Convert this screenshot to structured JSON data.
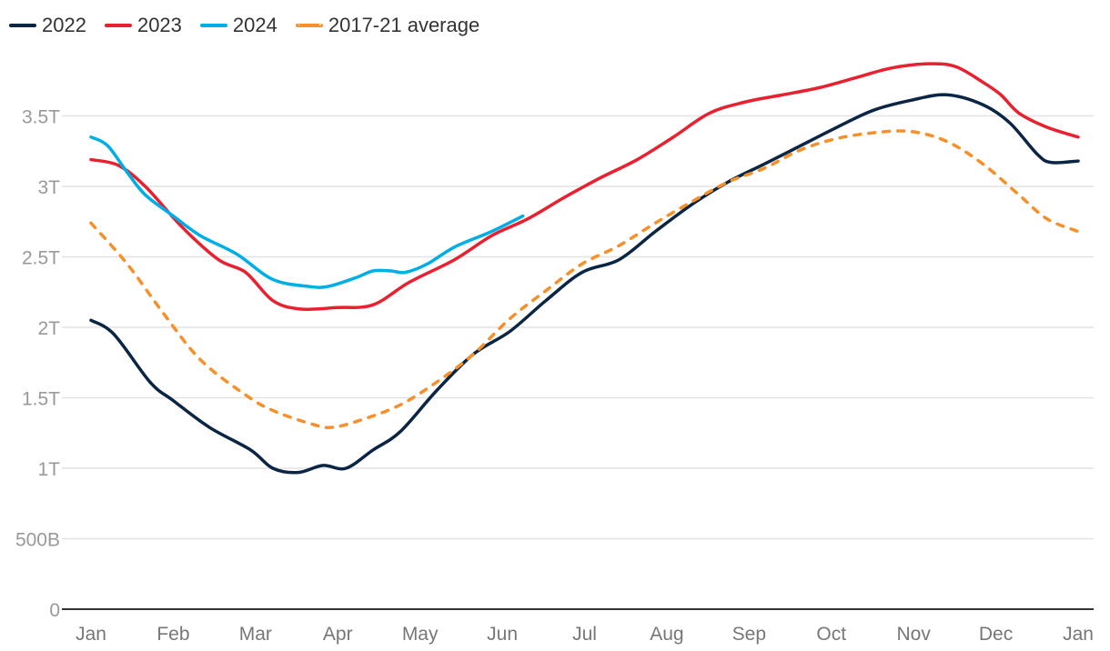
{
  "chart_data": {
    "type": "line",
    "title": "",
    "xlabel": "",
    "ylabel": "",
    "x_unit": "months since Jan 1",
    "y_unit": "trillions",
    "xlim": [
      0,
      12
    ],
    "ylim": [
      0,
      4
    ],
    "grid": true,
    "legend_position": "top-left",
    "x_ticks": [
      {
        "value": 0,
        "label": "Jan"
      },
      {
        "value": 1,
        "label": "Feb"
      },
      {
        "value": 2,
        "label": "Mar"
      },
      {
        "value": 3,
        "label": "Apr"
      },
      {
        "value": 4,
        "label": "May"
      },
      {
        "value": 5,
        "label": "Jun"
      },
      {
        "value": 6,
        "label": "Jul"
      },
      {
        "value": 7,
        "label": "Aug"
      },
      {
        "value": 8,
        "label": "Sep"
      },
      {
        "value": 9,
        "label": "Oct"
      },
      {
        "value": 10,
        "label": "Nov"
      },
      {
        "value": 11,
        "label": "Dec"
      },
      {
        "value": 12,
        "label": "Jan"
      }
    ],
    "y_ticks": [
      {
        "value": 0,
        "label": "0"
      },
      {
        "value": 0.5,
        "label": "500B"
      },
      {
        "value": 1,
        "label": "1T"
      },
      {
        "value": 1.5,
        "label": "1.5T"
      },
      {
        "value": 2,
        "label": "2T"
      },
      {
        "value": 2.5,
        "label": "2.5T"
      },
      {
        "value": 3,
        "label": "3T"
      },
      {
        "value": 3.5,
        "label": "3.5T"
      }
    ],
    "series": [
      {
        "name": "2022",
        "color": "#0b2545",
        "dashed": false,
        "points": [
          [
            0,
            2.05
          ],
          [
            0.28,
            1.95
          ],
          [
            0.72,
            1.61
          ],
          [
            1.0,
            1.48
          ],
          [
            1.44,
            1.29
          ],
          [
            1.94,
            1.13
          ],
          [
            2.21,
            1.0
          ],
          [
            2.52,
            0.97
          ],
          [
            2.82,
            1.02
          ],
          [
            3.1,
            1.0
          ],
          [
            3.43,
            1.13
          ],
          [
            3.76,
            1.26
          ],
          [
            4.2,
            1.55
          ],
          [
            4.65,
            1.81
          ],
          [
            5.09,
            1.97
          ],
          [
            5.53,
            2.19
          ],
          [
            5.97,
            2.39
          ],
          [
            6.42,
            2.48
          ],
          [
            6.86,
            2.68
          ],
          [
            7.3,
            2.87
          ],
          [
            7.74,
            3.03
          ],
          [
            8.19,
            3.16
          ],
          [
            8.63,
            3.29
          ],
          [
            9.07,
            3.42
          ],
          [
            9.51,
            3.54
          ],
          [
            9.96,
            3.61
          ],
          [
            10.4,
            3.65
          ],
          [
            10.84,
            3.58
          ],
          [
            11.17,
            3.45
          ],
          [
            11.5,
            3.23
          ],
          [
            11.67,
            3.17
          ],
          [
            12,
            3.18
          ]
        ]
      },
      {
        "name": "2023",
        "color": "#e8202f",
        "dashed": false,
        "points": [
          [
            0,
            3.19
          ],
          [
            0.33,
            3.15
          ],
          [
            0.66,
            3.0
          ],
          [
            1.11,
            2.71
          ],
          [
            1.55,
            2.48
          ],
          [
            1.88,
            2.39
          ],
          [
            2.21,
            2.19
          ],
          [
            2.54,
            2.13
          ],
          [
            2.99,
            2.14
          ],
          [
            3.43,
            2.16
          ],
          [
            3.87,
            2.32
          ],
          [
            4.42,
            2.48
          ],
          [
            4.87,
            2.65
          ],
          [
            5.31,
            2.77
          ],
          [
            5.75,
            2.92
          ],
          [
            6.19,
            3.06
          ],
          [
            6.64,
            3.19
          ],
          [
            7.08,
            3.35
          ],
          [
            7.52,
            3.52
          ],
          [
            7.96,
            3.6
          ],
          [
            8.41,
            3.65
          ],
          [
            8.85,
            3.7
          ],
          [
            9.29,
            3.77
          ],
          [
            9.73,
            3.84
          ],
          [
            10.18,
            3.87
          ],
          [
            10.51,
            3.85
          ],
          [
            10.84,
            3.74
          ],
          [
            11.06,
            3.65
          ],
          [
            11.28,
            3.52
          ],
          [
            11.62,
            3.42
          ],
          [
            12,
            3.35
          ]
        ]
      },
      {
        "name": "2024",
        "color": "#00aee6",
        "dashed": false,
        "points": [
          [
            0,
            3.35
          ],
          [
            0.2,
            3.29
          ],
          [
            0.44,
            3.1
          ],
          [
            0.66,
            2.94
          ],
          [
            1.0,
            2.79
          ],
          [
            1.33,
            2.65
          ],
          [
            1.77,
            2.52
          ],
          [
            2.21,
            2.34
          ],
          [
            2.65,
            2.29
          ],
          [
            2.88,
            2.29
          ],
          [
            3.21,
            2.35
          ],
          [
            3.43,
            2.4
          ],
          [
            3.65,
            2.4
          ],
          [
            3.82,
            2.39
          ],
          [
            4.09,
            2.45
          ],
          [
            4.42,
            2.57
          ],
          [
            4.87,
            2.68
          ],
          [
            5.25,
            2.79
          ]
        ]
      },
      {
        "name": "2017-21 average",
        "color": "#f5902a",
        "dashed": true,
        "points": [
          [
            0,
            2.74
          ],
          [
            0.44,
            2.45
          ],
          [
            0.88,
            2.1
          ],
          [
            1.33,
            1.77
          ],
          [
            1.88,
            1.52
          ],
          [
            2.21,
            1.41
          ],
          [
            2.65,
            1.32
          ],
          [
            2.93,
            1.29
          ],
          [
            3.32,
            1.35
          ],
          [
            3.76,
            1.45
          ],
          [
            4.2,
            1.61
          ],
          [
            4.65,
            1.81
          ],
          [
            5.09,
            2.06
          ],
          [
            5.53,
            2.26
          ],
          [
            5.97,
            2.45
          ],
          [
            6.42,
            2.58
          ],
          [
            6.86,
            2.74
          ],
          [
            7.3,
            2.89
          ],
          [
            7.74,
            3.03
          ],
          [
            8.19,
            3.13
          ],
          [
            8.63,
            3.26
          ],
          [
            9.07,
            3.34
          ],
          [
            9.51,
            3.38
          ],
          [
            9.96,
            3.39
          ],
          [
            10.4,
            3.32
          ],
          [
            10.84,
            3.16
          ],
          [
            11.28,
            2.94
          ],
          [
            11.62,
            2.77
          ],
          [
            12,
            2.68
          ]
        ]
      }
    ]
  }
}
